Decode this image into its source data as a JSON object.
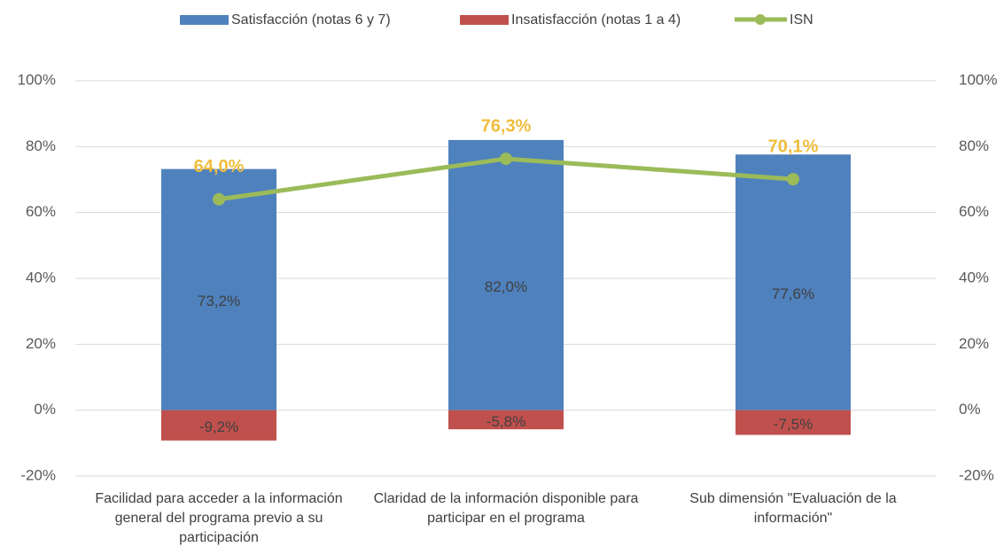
{
  "chart_data": {
    "type": "bar",
    "categories": [
      "Facilidad para acceder a la información general del programa previo a su participación",
      "Claridad de la información disponible para participar en el programa",
      "Sub dimensión \"Evaluación de la información\""
    ],
    "series": [
      {
        "name": "Satisfacción (notas 6 y 7)",
        "type": "bar",
        "color": "#4f81bd",
        "values": [
          73.2,
          82.0,
          77.6
        ],
        "value_labels": [
          "73,2%",
          "82,0%",
          "77,6%"
        ]
      },
      {
        "name": "Insatisfacción (notas 1 a 4)",
        "type": "bar",
        "color": "#c0504d",
        "values": [
          -9.2,
          -5.8,
          -7.5
        ],
        "value_labels": [
          "-9,2%",
          "-5,8%",
          "-7,5%"
        ]
      },
      {
        "name": "ISN",
        "type": "line",
        "axis": "y2",
        "color": "#9bbb59",
        "values": [
          64.0,
          76.3,
          70.1
        ],
        "value_labels": [
          "64,0%",
          "76,3%",
          "70,1%"
        ]
      }
    ],
    "ylim": [
      -20,
      100
    ],
    "yticks": [
      {
        "value": -20,
        "label": "-20%"
      },
      {
        "value": 0,
        "label": "0%"
      },
      {
        "value": 20,
        "label": "20%"
      },
      {
        "value": 40,
        "label": "40%"
      },
      {
        "value": 60,
        "label": "60%"
      },
      {
        "value": 80,
        "label": "80%"
      },
      {
        "value": 100,
        "label": "100%"
      }
    ],
    "y2lim": [
      -20,
      100
    ],
    "y2ticks": [
      {
        "value": -20,
        "label": "-20%"
      },
      {
        "value": 0,
        "label": "0%"
      },
      {
        "value": 20,
        "label": "20%"
      },
      {
        "value": 40,
        "label": "40%"
      },
      {
        "value": 60,
        "label": "60%"
      },
      {
        "value": 80,
        "label": "80%"
      },
      {
        "value": 100,
        "label": "100%"
      }
    ],
    "grid": true,
    "legend": "top"
  }
}
